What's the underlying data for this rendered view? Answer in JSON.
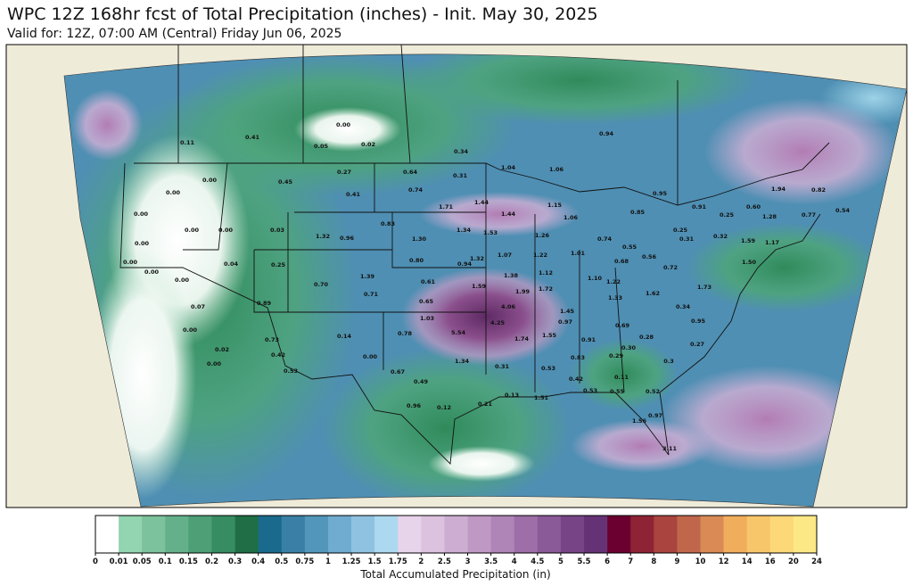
{
  "header": {
    "title": "WPC 12Z 168hr fcst of Total Precipitation (inches) - Init. May 30, 2025",
    "subtitle": "Valid for: 12Z, 07:00 AM (Central) Friday Jun 06, 2025"
  },
  "map": {
    "labels": [
      "0.11",
      "0.41",
      "0.00",
      "0.05",
      "0.02",
      "0.34",
      "0.94",
      "0.27",
      "0.64",
      "0.31",
      "1.04",
      "1.06",
      "0.45",
      "0.41",
      "0.74",
      "0.95",
      "1.94",
      "0.82",
      "0.00",
      "0.00",
      "0.00",
      "1.71",
      "1.44",
      "1.15",
      "0.91",
      "0.25",
      "0.60",
      "1.28",
      "0.77",
      "0.54",
      "0.83",
      "1.44",
      "1.06",
      "0.85",
      "0.00",
      "0.00",
      "0.03",
      "1.32",
      "0.96",
      "1.30",
      "1.34",
      "1.53",
      "1.26",
      "0.74",
      "0.55",
      "0.25",
      "0.31",
      "0.32",
      "1.59",
      "1.17",
      "0.00",
      "0.00",
      "0.04",
      "0.25",
      "0.80",
      "1.32",
      "0.94",
      "1.07",
      "1.22",
      "1.01",
      "0.68",
      "0.56",
      "0.72",
      "1.50",
      "0.00",
      "0.00",
      "0.70",
      "1.39",
      "0.61",
      "1.59",
      "1.38",
      "1.12",
      "1.10",
      "1.22",
      "1.99",
      "1.72",
      "1.33",
      "1.62",
      "1.73",
      "0.89",
      "0.71",
      "0.65",
      "4.06",
      "0.34",
      "0.07",
      "1.45",
      "1.03",
      "4.25",
      "0.97",
      "0.69",
      "0.95",
      "0.00",
      "5.54",
      "0.78",
      "0.73",
      "0.14",
      "1.74",
      "1.55",
      "0.91",
      "0.28",
      "0.30",
      "0.27",
      "0.02",
      "0.42",
      "0.00",
      "0.83",
      "0.29",
      "0.00",
      "0.53",
      "1.34",
      "0.31",
      "0.53",
      "0.3",
      "0.67",
      "0.49",
      "0.42",
      "0.11",
      "0.53",
      "0.55",
      "0.52",
      "0.13",
      "1.51",
      "0.96",
      "0.12",
      "0.21",
      "1.56",
      "0.97",
      "3.11"
    ]
  },
  "colorbar": {
    "label": "Total Accumulated Precipitation (in)",
    "ticks": [
      0,
      0.01,
      0.05,
      0.1,
      0.15,
      0.2,
      0.3,
      0.4,
      0.5,
      0.75,
      1,
      1.25,
      1.5,
      1.75,
      2,
      2.5,
      3,
      3.5,
      4,
      4.5,
      5,
      5.5,
      6,
      7,
      8,
      9,
      10,
      12,
      14,
      16,
      20,
      24
    ],
    "colors": [
      "#ffffff",
      "#93d4b1",
      "#7cc29d",
      "#64b08a",
      "#4e9e76",
      "#388c62",
      "#1f6e45",
      "#1a6a8e",
      "#3a80a6",
      "#5296bb",
      "#6faccf",
      "#8ec2e0",
      "#acd9f0",
      "#e8d4ea",
      "#dcc2df",
      "#cdaed2",
      "#bf99c4",
      "#af84b6",
      "#9d6ea7",
      "#8a5997",
      "#774586",
      "#653375",
      "#6b0030",
      "#8e2335",
      "#a9443f",
      "#c0674b",
      "#d98a55",
      "#f0ad5c",
      "#f8c66a",
      "#fcd878",
      "#fde886",
      "#fdf694"
    ]
  }
}
